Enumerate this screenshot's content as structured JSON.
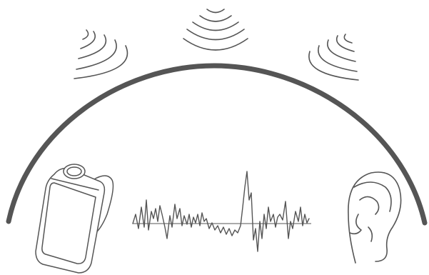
{
  "scene": {
    "components": [
      {
        "id": "arc",
        "icon": "range-arc-icon"
      },
      {
        "id": "sound-waves-left",
        "icon": "sound-waves-icon"
      },
      {
        "id": "sound-waves-top",
        "icon": "sound-waves-icon"
      },
      {
        "id": "sound-waves-right",
        "icon": "sound-waves-icon"
      },
      {
        "id": "device",
        "icon": "speakerphone-device-icon"
      },
      {
        "id": "waveform",
        "icon": "audio-waveform-icon"
      },
      {
        "id": "ear",
        "icon": "ear-icon"
      }
    ],
    "colors": {
      "arc": "#555555",
      "line": "#555555",
      "background": "#ffffff"
    }
  }
}
